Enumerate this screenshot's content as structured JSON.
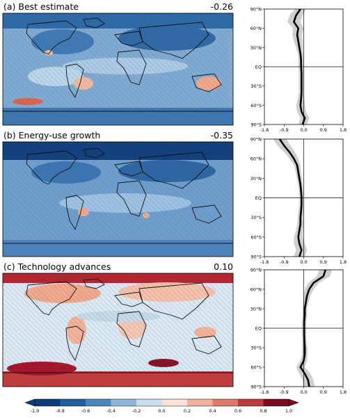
{
  "colors": {
    "map_base": "#6a9cc9",
    "land_outline": "#111111",
    "profile_line": "#000000",
    "profile_band": "#cfcfcf"
  },
  "chart_data": [
    {
      "type": "heatmap",
      "title": "(a) Best estimate",
      "value_label": "-0.26",
      "global_mean": -0.26,
      "dominant_tone": "blue"
    },
    {
      "type": "line",
      "orientation": "vertical-profile",
      "x_ticks": [
        "-1.8",
        "-0.9",
        "0.0",
        "0.9",
        "1.8"
      ],
      "y_ticks": [
        "90°N",
        "60°N",
        "30°N",
        "EQ",
        "30°S",
        "60°S",
        "90°S"
      ],
      "xlim": [
        -1.8,
        1.8
      ],
      "ylim": [
        -90,
        90
      ],
      "series": [
        {
          "lat": [
            90,
            80,
            70,
            60,
            50,
            40,
            30,
            20,
            10,
            0,
            -10,
            -20,
            -30,
            -40,
            -50,
            -60,
            -70,
            -80,
            -90
          ],
          "mean": [
            -0.15,
            -0.35,
            -0.45,
            -0.25,
            -0.3,
            -0.25,
            -0.2,
            -0.15,
            -0.12,
            -0.12,
            -0.1,
            -0.1,
            -0.1,
            -0.1,
            -0.12,
            -0.15,
            -0.1,
            0.05,
            -0.05
          ],
          "band": [
            0.25,
            0.3,
            0.3,
            0.25,
            0.22,
            0.2,
            0.15,
            0.12,
            0.12,
            0.12,
            0.12,
            0.12,
            0.12,
            0.12,
            0.15,
            0.2,
            0.2,
            0.2,
            0.2
          ]
        }
      ]
    },
    {
      "type": "heatmap",
      "title": "(b) Energy-use growth",
      "value_label": "-0.35",
      "global_mean": -0.35,
      "dominant_tone": "blue"
    },
    {
      "type": "line",
      "orientation": "vertical-profile",
      "x_ticks": [
        "-1.8",
        "-0.9",
        "0.0",
        "0.9",
        "1.8"
      ],
      "y_ticks": [
        "90°N",
        "60°N",
        "30°N",
        "EQ",
        "30°S",
        "60°S",
        "90°S"
      ],
      "xlim": [
        -1.8,
        1.8
      ],
      "ylim": [
        -90,
        90
      ],
      "series": [
        {
          "lat": [
            90,
            80,
            70,
            60,
            50,
            40,
            30,
            20,
            10,
            0,
            -10,
            -20,
            -30,
            -40,
            -50,
            -60,
            -70,
            -80,
            -90
          ],
          "mean": [
            -1.1,
            -0.9,
            -0.65,
            -0.45,
            -0.3,
            -0.25,
            -0.2,
            -0.15,
            -0.12,
            -0.1,
            -0.1,
            -0.12,
            -0.15,
            -0.15,
            -0.2,
            -0.25,
            -0.2,
            -0.1,
            -0.2
          ],
          "band": [
            0.3,
            0.3,
            0.25,
            0.2,
            0.15,
            0.12,
            0.12,
            0.1,
            0.1,
            0.1,
            0.1,
            0.12,
            0.12,
            0.15,
            0.15,
            0.2,
            0.25,
            0.25,
            0.25
          ]
        }
      ]
    },
    {
      "type": "heatmap",
      "title": "(c) Technology advances",
      "value_label": "0.10",
      "global_mean": 0.1,
      "dominant_tone": "red"
    },
    {
      "type": "line",
      "orientation": "vertical-profile",
      "x_ticks": [
        "-1.8",
        "-0.9",
        "0.0",
        "0.9",
        "1.8"
      ],
      "y_ticks": [
        "90°N",
        "60°N",
        "30°N",
        "EQ",
        "30°S",
        "60°S",
        "90°S"
      ],
      "xlim": [
        -1.8,
        1.8
      ],
      "ylim": [
        -90,
        90
      ],
      "series": [
        {
          "lat": [
            90,
            80,
            70,
            60,
            50,
            40,
            30,
            20,
            10,
            0,
            -10,
            -20,
            -30,
            -40,
            -50,
            -60,
            -70,
            -80,
            -90
          ],
          "mean": [
            1.0,
            0.9,
            0.45,
            0.25,
            0.15,
            0.1,
            0.05,
            0.05,
            0.02,
            0.02,
            0.02,
            0.03,
            0.05,
            0.05,
            0.0,
            -0.15,
            0.05,
            0.2,
            0.25
          ],
          "band": [
            0.3,
            0.3,
            0.25,
            0.2,
            0.15,
            0.12,
            0.1,
            0.1,
            0.1,
            0.1,
            0.1,
            0.1,
            0.12,
            0.12,
            0.15,
            0.2,
            0.25,
            0.25,
            0.25
          ]
        }
      ]
    },
    {
      "type": "colorbar",
      "ticks": [
        "-1.0",
        "-0.8",
        "-0.6",
        "-0.4",
        "-0.2",
        "0.0",
        "0.2",
        "0.4",
        "0.6",
        "0.8",
        "1.0"
      ],
      "colors": [
        "#0b3c7a",
        "#1e5fa0",
        "#4a87c0",
        "#8ab6d9",
        "#c9dfee",
        "#fbe2d5",
        "#f4b096",
        "#e07a62",
        "#c23a3a",
        "#7e0a1e"
      ]
    }
  ]
}
